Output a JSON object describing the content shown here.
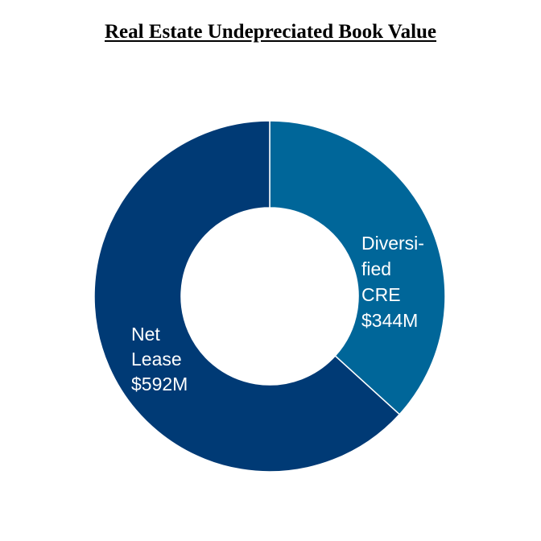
{
  "chart_data": {
    "type": "pie",
    "title": "Real Estate Undepreciated Book Value",
    "donut": true,
    "slices": [
      {
        "label_lines": [
          "Diversi-",
          "fied",
          "CRE",
          "$344M"
        ],
        "value": 344,
        "color": "#006699"
      },
      {
        "label_lines": [
          "Net",
          "Lease",
          "$592M"
        ],
        "value": 592,
        "color": "#003A75"
      }
    ],
    "legend": "none"
  }
}
